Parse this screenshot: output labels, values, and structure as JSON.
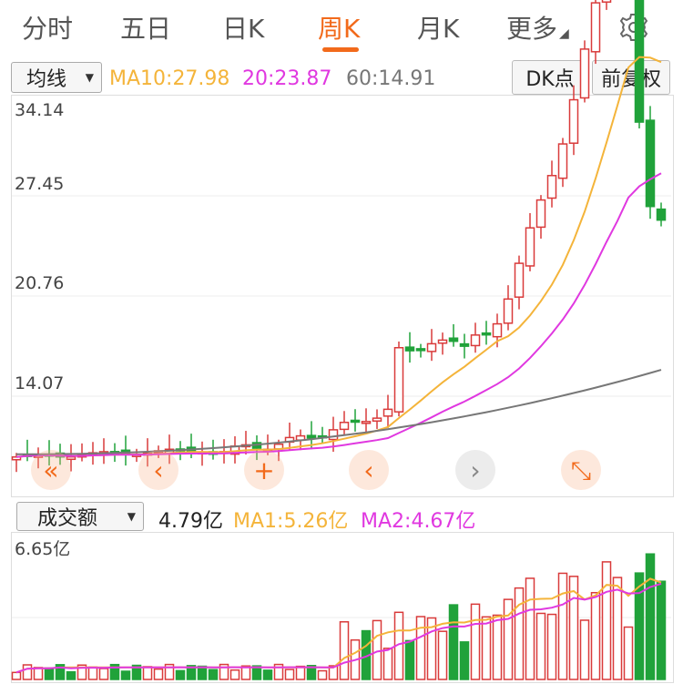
{
  "tabs": [
    {
      "label": "分时",
      "active": false
    },
    {
      "label": "五日",
      "active": false
    },
    {
      "label": "日K",
      "active": false
    },
    {
      "label": "周K",
      "active": true
    },
    {
      "label": "月K",
      "active": false
    },
    {
      "label": "更多",
      "active": false
    }
  ],
  "more_caret": "◢",
  "settings_icon": "gear-icon",
  "indicator": {
    "selector": "均线",
    "ma10": "MA10:27.98",
    "ma20": "20:23.87",
    "ma60": "60:14.91"
  },
  "buttons": {
    "dk": "DK点",
    "fq": "前复权"
  },
  "price_axis": [
    "34.14",
    "27.45",
    "20.76",
    "14.07"
  ],
  "volume": {
    "selector": "成交额",
    "value": "4.79亿",
    "ma1": "MA1:5.26亿",
    "ma2": "MA2:4.67亿",
    "axis_top": "6.65亿"
  },
  "colors": {
    "up": "#d93a3a",
    "down": "#20a23a",
    "ma10": "#f4b43a",
    "ma20": "#e038e0",
    "ma60": "#777777",
    "accent": "#f26a1b"
  },
  "overlay_icons": [
    "double-left-icon",
    "move-left-icon",
    "crosshair-icon",
    "prev-icon",
    "next-icon",
    "expand-icon"
  ]
}
